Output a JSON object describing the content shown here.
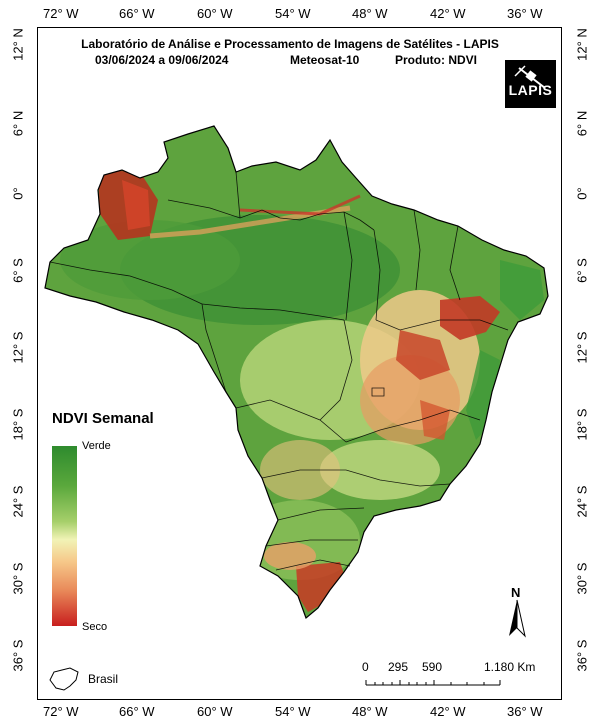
{
  "map": {
    "title": "Laboratório de Análise e Processamento de Imagens de Satélites - LAPIS",
    "date_range": "03/06/2024  a  09/06/2024",
    "satellite": "Meteosat-10",
    "product": "Produto: NDVI",
    "logo_text": "LAPIS",
    "lon_ticks": [
      "72° W",
      "66° W",
      "60° W",
      "54° W",
      "48° W",
      "42° W",
      "36° W"
    ],
    "lat_ticks": [
      "12° N",
      "6° N",
      "0°",
      "6° S",
      "12° S",
      "18° S",
      "24° S",
      "30° S",
      "36° S"
    ],
    "legend": {
      "title": "NDVI Semanal",
      "high_label": "Verde",
      "low_label": "Seco",
      "colors": [
        "#2e8b2e",
        "#a6cf6a",
        "#f1f3b6",
        "#e98a5a",
        "#c81e1e"
      ]
    },
    "inset_label": "Brasil",
    "scale": {
      "ticks": [
        "0",
        "295",
        "590",
        "1.180 Km"
      ]
    },
    "north_label": "N"
  }
}
